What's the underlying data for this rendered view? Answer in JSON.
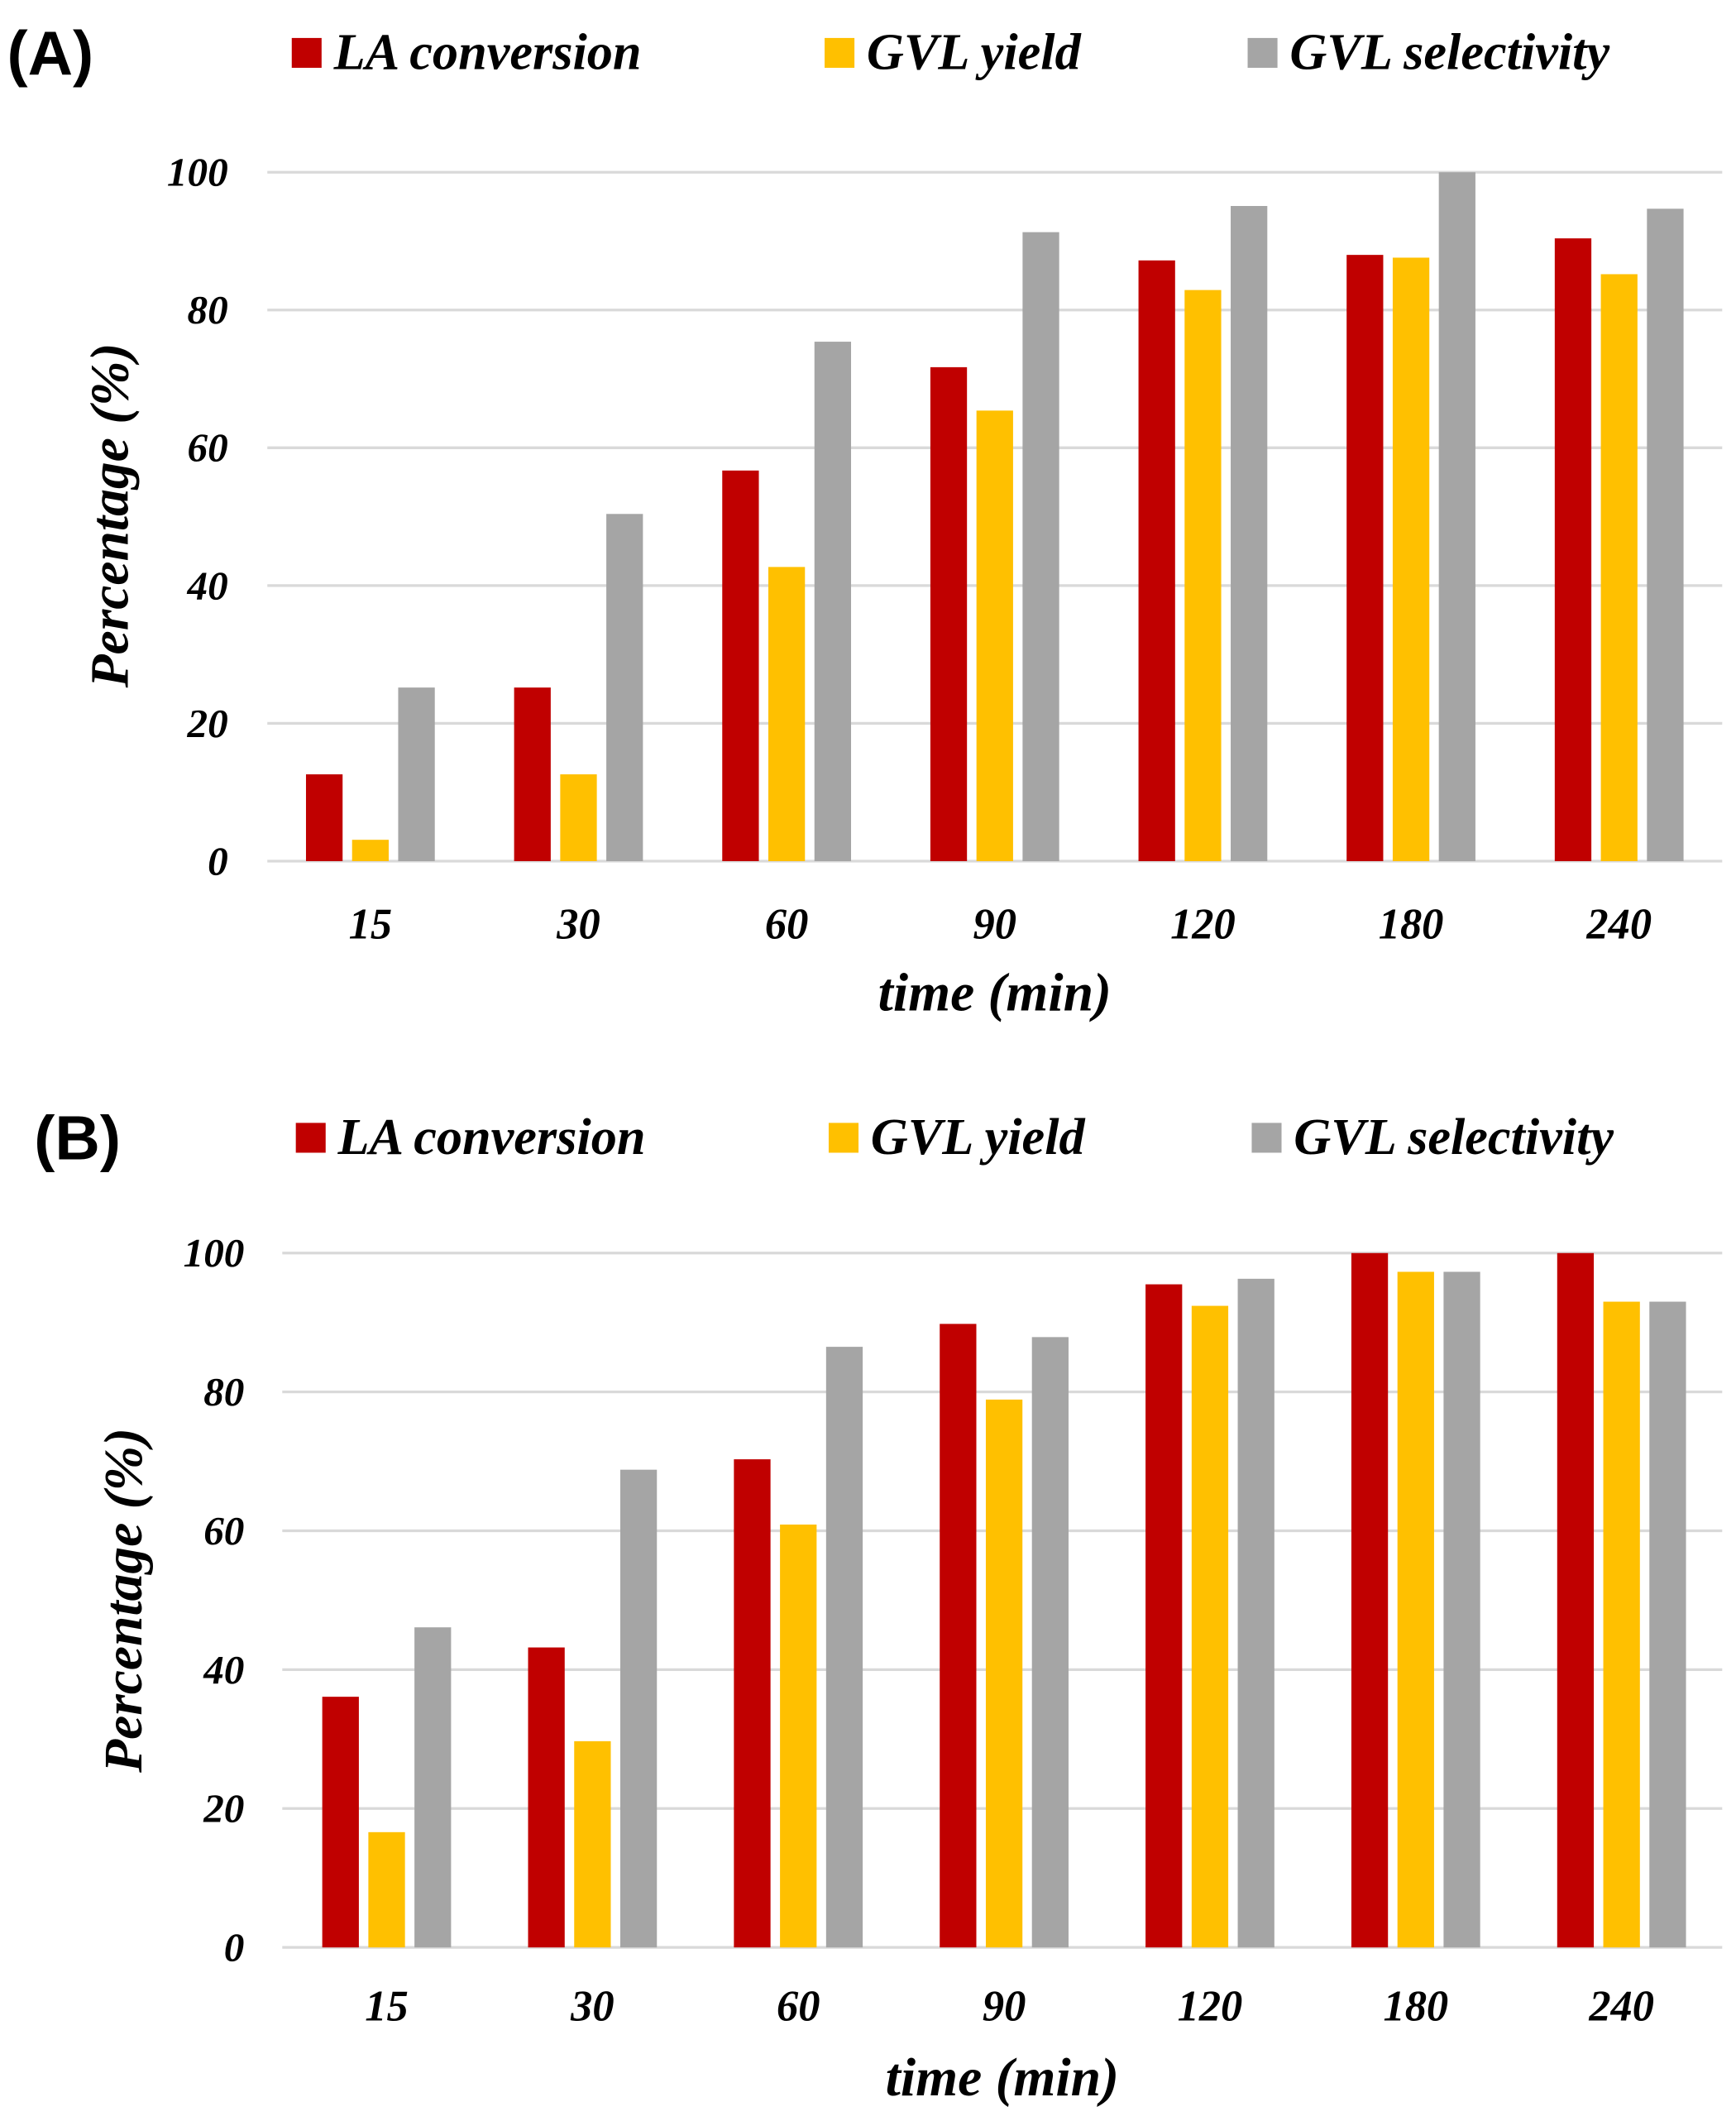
{
  "colors": {
    "LA conversion": "#C00000",
    "GVL yield": "#FFC000",
    "GVL selectivity": "#A5A5A5",
    "grid": "#D9D9D9"
  },
  "chart_data": [
    {
      "panel_label": "(A)",
      "type": "bar",
      "xlabel": "time (min)",
      "ylabel": "Percentage (%)",
      "ylim": [
        0,
        100
      ],
      "yticks": [
        0,
        20,
        40,
        60,
        80,
        100
      ],
      "grid": true,
      "legend_placement": "top",
      "categories": [
        "15",
        "30",
        "60",
        "90",
        "120",
        "180",
        "240"
      ],
      "series": [
        {
          "name": "LA conversion",
          "values": [
            12.6,
            25.2,
            56.7,
            71.7,
            87.2,
            88.0,
            90.4
          ]
        },
        {
          "name": "GVL yield",
          "values": [
            3.1,
            12.6,
            42.7,
            65.4,
            82.9,
            87.6,
            85.2
          ]
        },
        {
          "name": "GVL selectivity",
          "values": [
            25.2,
            50.4,
            75.4,
            91.3,
            95.1,
            100,
            94.7
          ]
        }
      ]
    },
    {
      "panel_label": "(B)",
      "type": "bar",
      "xlabel": "time (min)",
      "ylabel": "Percentage (%)",
      "ylim": [
        0,
        100
      ],
      "yticks": [
        0,
        20,
        40,
        60,
        80,
        100
      ],
      "grid": true,
      "legend_placement": "top",
      "categories": [
        "15",
        "30",
        "60",
        "90",
        "120",
        "180",
        "240"
      ],
      "series": [
        {
          "name": "LA conversion",
          "values": [
            36.1,
            43.2,
            70.3,
            89.8,
            95.5,
            100,
            100
          ]
        },
        {
          "name": "GVL yield",
          "values": [
            16.6,
            29.7,
            60.9,
            78.9,
            92.4,
            97.3,
            93.0
          ]
        },
        {
          "name": "GVL selectivity",
          "values": [
            46.1,
            68.8,
            86.5,
            87.9,
            96.3,
            97.3,
            93.0
          ]
        }
      ]
    }
  ]
}
